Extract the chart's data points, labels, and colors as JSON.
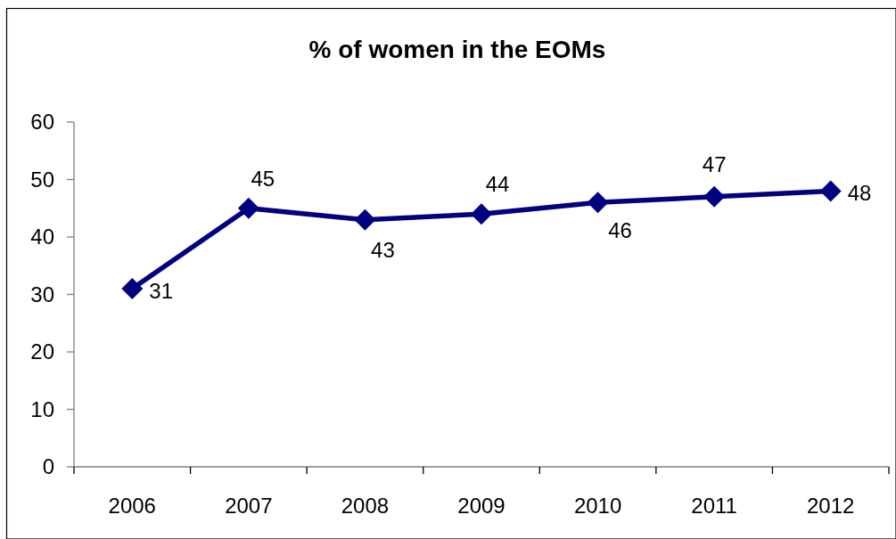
{
  "chart_data": {
    "type": "line",
    "title": "% of women in the EOMs",
    "categories": [
      "2006",
      "2007",
      "2008",
      "2009",
      "2010",
      "2011",
      "2012"
    ],
    "series": [
      {
        "color": "#000080",
        "values": [
          31,
          45,
          43,
          44,
          46,
          47,
          48
        ]
      }
    ],
    "ylim": [
      0,
      60
    ],
    "yticks": [
      0,
      10,
      20,
      30,
      40,
      50,
      60
    ],
    "marker": "diamond",
    "line_style": "solid",
    "data_labels": true
  }
}
